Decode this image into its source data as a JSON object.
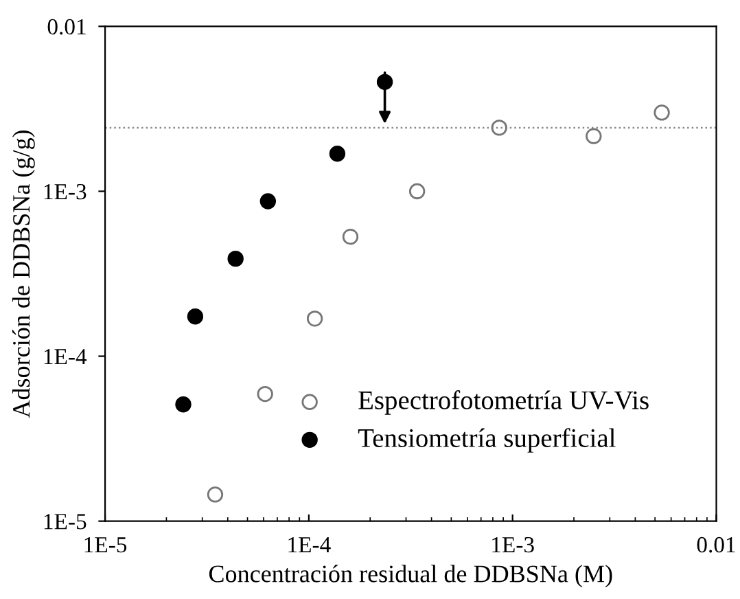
{
  "chart_data": {
    "type": "scatter",
    "xlabel": "Concentración residual de DDBSNa (M)",
    "ylabel": "Adsorción de DDBSNa (g/g)",
    "log": "xy",
    "xlim": [
      1e-05,
      0.01
    ],
    "ylim": [
      1e-05,
      0.01
    ],
    "xticks": [
      {
        "value": 1e-05,
        "label": "1E-5"
      },
      {
        "value": 0.0001,
        "label": "1E-4"
      },
      {
        "value": 0.001,
        "label": "1E-3"
      },
      {
        "value": 0.01,
        "label": "0.01"
      }
    ],
    "yticks": [
      {
        "value": 1e-05,
        "label": "1E-5"
      },
      {
        "value": 0.0001,
        "label": "1E-4"
      },
      {
        "value": 0.001,
        "label": "1E-3"
      },
      {
        "value": 0.01,
        "label": "0.01"
      }
    ],
    "marker": "circle",
    "legend": "bottom right",
    "grid": false,
    "series": [
      {
        "name": "Espectrofotometría UV-Vis",
        "color": "#777777",
        "x": [
          3.47e-05,
          6.1e-05,
          0.000107,
          0.00016,
          0.00034,
          0.00086,
          0.0025,
          0.0054
        ],
        "values": [
          1.45e-05,
          5.9e-05,
          0.000169,
          0.00053,
          0.001,
          0.00243,
          0.00216,
          0.003
        ]
      },
      {
        "name": "Tensiometría superficial",
        "color": "#000000",
        "x": [
          2.42e-05,
          2.77e-05,
          4.37e-05,
          6.3e-05,
          0.000138,
          0.000236
        ],
        "values": [
          5.1e-05,
          0.000174,
          0.00039,
          0.00087,
          0.00169,
          0.0046
        ]
      }
    ],
    "ref_lines": [
      {
        "axis": "y",
        "value": 0.00243,
        "color": "#888888",
        "line_style": "dotted"
      }
    ]
  }
}
